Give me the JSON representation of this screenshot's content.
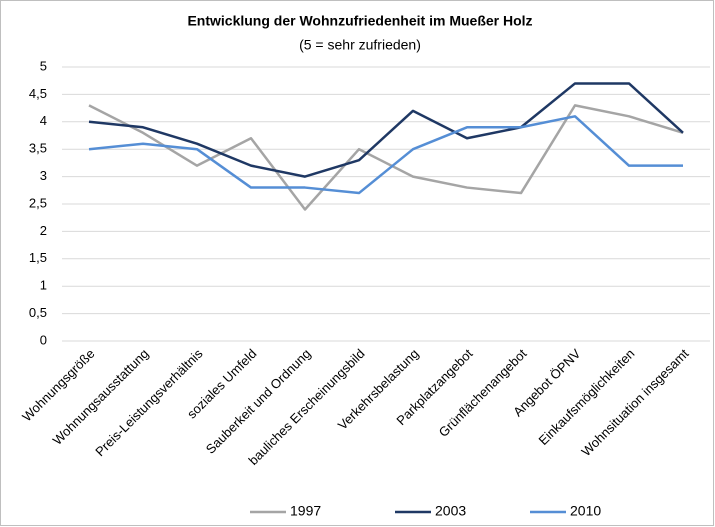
{
  "chart_data": {
    "type": "line",
    "title": "Entwicklung der Wohnzufriedenheit im Mueßer Holz",
    "subtitle": "(5 = sehr zufrieden)",
    "categories": [
      "Wohnungsgröße",
      "Wohnungsausstattung",
      "Preis-Leistungsverhältnis",
      "soziales Umfeld",
      "Sauberkeit und Ordnung",
      "bauliches Erscheinungsbild",
      "Verkehrsbelastung",
      "Parkplatzangebot",
      "Grünflächenangebot",
      "Angebot ÖPNV",
      "Einkaufsmöglichkeiten",
      "Wohnsituation insgesamt"
    ],
    "series": [
      {
        "name": "1997",
        "color": "#a5a5a5",
        "values": [
          4.3,
          3.8,
          3.2,
          3.7,
          2.4,
          3.5,
          3.0,
          2.8,
          2.7,
          4.3,
          4.1,
          3.8
        ]
      },
      {
        "name": "2003",
        "color": "#1f3864",
        "values": [
          4.0,
          3.9,
          3.6,
          3.2,
          3.0,
          3.3,
          4.2,
          3.7,
          3.9,
          4.7,
          4.7,
          3.8
        ]
      },
      {
        "name": "2010",
        "color": "#558ed5",
        "values": [
          3.5,
          3.6,
          3.5,
          2.8,
          2.8,
          2.7,
          3.5,
          3.9,
          3.9,
          4.1,
          3.2,
          3.2
        ]
      }
    ],
    "ylim": [
      0,
      5
    ],
    "yticks": [
      0,
      {
        "value": 0.5,
        "label": "0,5"
      },
      1,
      {
        "value": 1.5,
        "label": "1,5"
      },
      2,
      {
        "value": 2.5,
        "label": "2,5"
      },
      3,
      {
        "value": 3.5,
        "label": "3,5"
      },
      4,
      {
        "value": 4.5,
        "label": "4,5"
      },
      5
    ],
    "grid": true,
    "legend": "bottom"
  }
}
